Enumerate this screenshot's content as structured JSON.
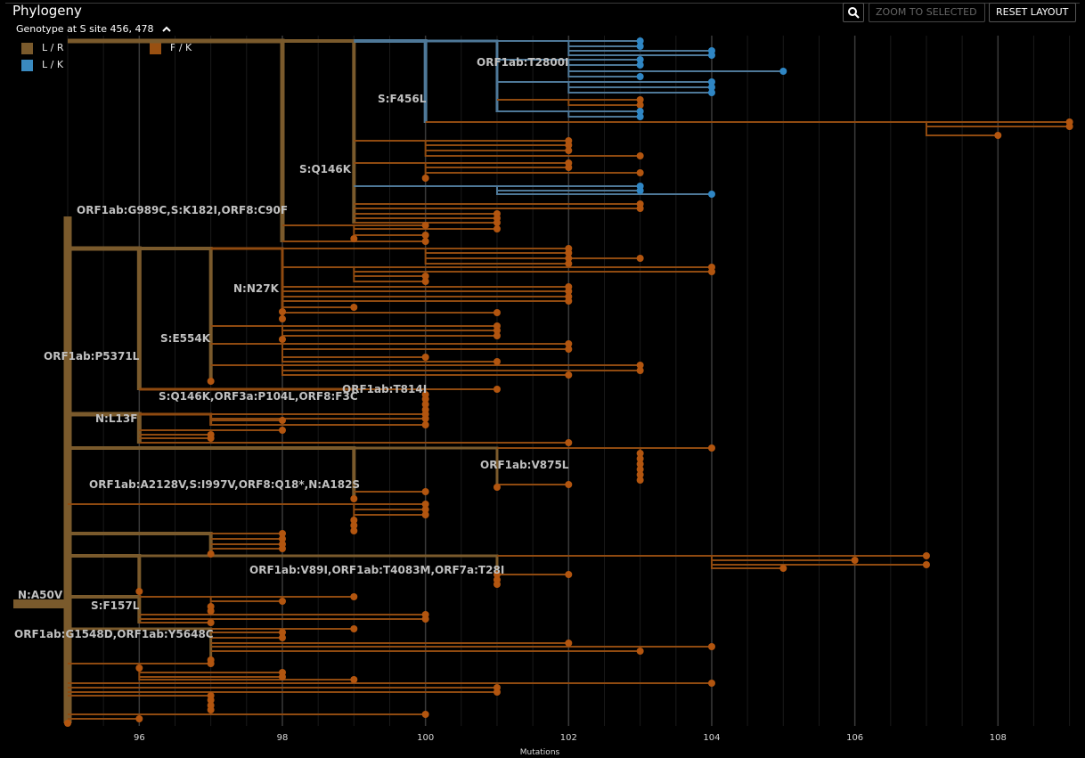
{
  "panel": {
    "title": "Phylogeny",
    "subtitle": "Genotype at S site 456, 478",
    "buttons": {
      "zoom_selected": "ZOOM TO SELECTED",
      "reset_layout": "RESET LAYOUT"
    },
    "icons": {
      "search": "magnifier-icon",
      "collapse": "chevron-up-icon"
    }
  },
  "legend": [
    {
      "label": "L / R",
      "color": "#7a5a2c"
    },
    {
      "label": "F / K",
      "color": "#995011"
    },
    {
      "label": "L / K",
      "color": "#3a8ac0"
    }
  ],
  "colors": {
    "lr": "#7a5a2c",
    "fk": "#8f4a10",
    "lk": "#4e7898",
    "tip_fk": "#b2550f",
    "tip_lk": "#2f86c4",
    "grid": "#333333"
  },
  "chart_data": {
    "type": "phylogeny",
    "title": "Phylogeny",
    "xlabel": "Mutations",
    "x_ticks": [
      96,
      98,
      100,
      102,
      104,
      106,
      108
    ],
    "xlim": [
      94.5,
      109.2
    ],
    "grid": true,
    "branch_labels": [
      {
        "text": "N:A50V",
        "x": 95
      },
      {
        "text": "ORF1ab:G989C,S:K182I,ORF8:C90F",
        "x": 98
      },
      {
        "text": "S:Q146K",
        "x": 99
      },
      {
        "text": "S:F456L",
        "x": 100
      },
      {
        "text": "ORF1ab:T2800I",
        "x": 101
      },
      {
        "text": "N:N27K",
        "x": 98
      },
      {
        "text": "S:E554K",
        "x": 97
      },
      {
        "text": "ORF1ab:P5371L",
        "x": 96
      },
      {
        "text": "ORF1ab:T814I",
        "x": 100
      },
      {
        "text": "S:Q146K,ORF3a:P104L,ORF8:F3C",
        "x": 99
      },
      {
        "text": "N:L13F",
        "x": 96
      },
      {
        "text": "ORF1ab:V875L",
        "x": 102
      },
      {
        "text": "ORF1ab:A2128V,S:I997V,ORF8:Q18*,N:A182S",
        "x": 99
      },
      {
        "text": "ORF1ab:V89I,ORF1ab:T4083M,ORF7a:T28I",
        "x": 101
      },
      {
        "text": "S:F157L",
        "x": 96
      },
      {
        "text": "ORF1ab:G1548D,ORF1ab:Y5648C",
        "x": 97
      }
    ]
  }
}
